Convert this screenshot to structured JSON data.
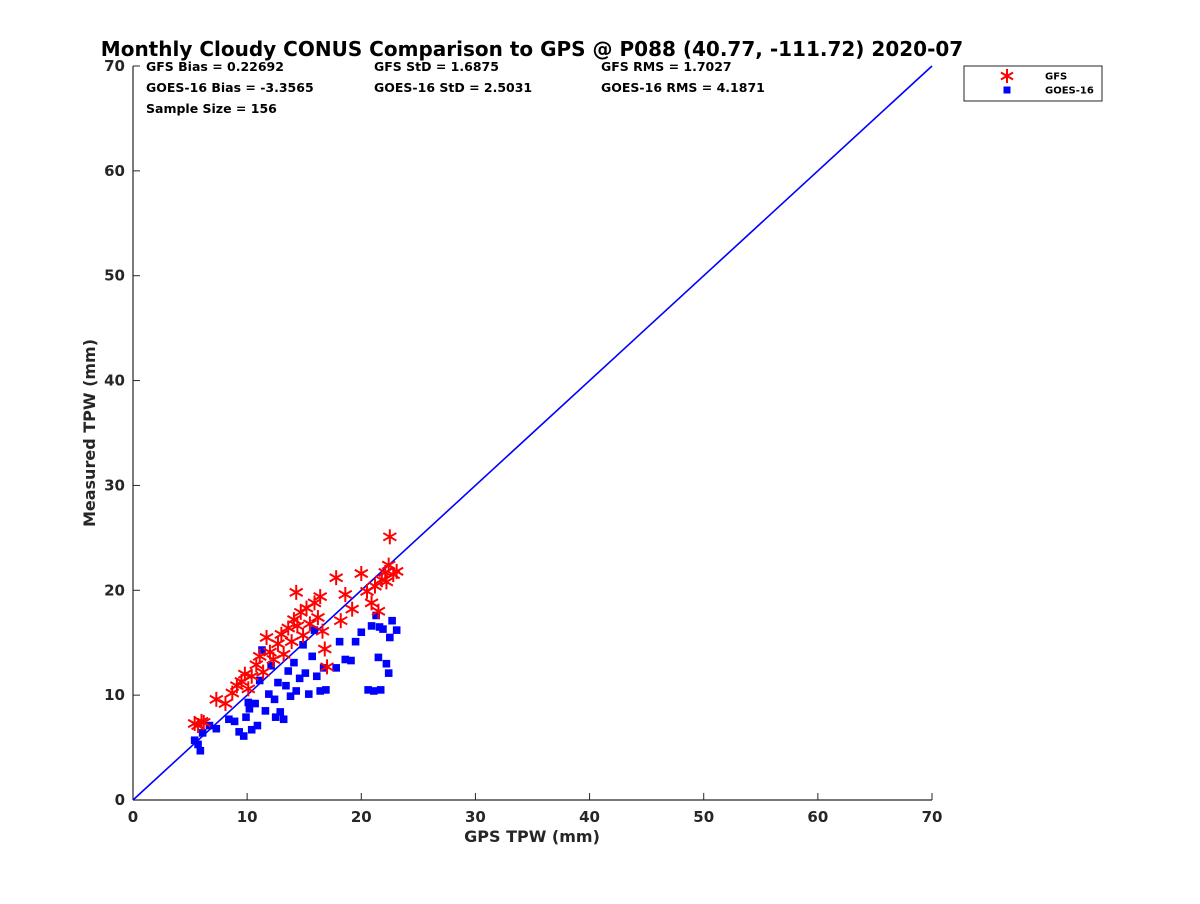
{
  "chart_data": {
    "type": "scatter",
    "title": "Monthly Cloudy CONUS Comparison to GPS @ P088 (40.77, -111.72) 2020-07",
    "xlabel": "GPS TPW (mm)",
    "ylabel": "Measured TPW (mm)",
    "xlim": [
      0,
      70
    ],
    "ylim": [
      0,
      70
    ],
    "xticks": [
      "0",
      "10",
      "20",
      "30",
      "40",
      "50",
      "60",
      "70"
    ],
    "yticks": [
      "0",
      "10",
      "20",
      "30",
      "40",
      "50",
      "60",
      "70"
    ],
    "grid": false,
    "legend_position": "top-right",
    "stats": [
      [
        "GFS Bias = 0.22692",
        "GFS StD = 1.6875",
        "GFS RMS = 1.7027"
      ],
      [
        "GOES-16 Bias = -3.3565",
        "GOES-16 StD = 2.5031",
        "GOES-16 RMS = 4.1871"
      ],
      [
        "Sample Size = 156",
        "",
        ""
      ]
    ],
    "one_to_one_line": {
      "x": [
        0,
        70
      ],
      "y": [
        0,
        70
      ],
      "color": "#0000ff"
    },
    "series": [
      {
        "name": "GFS",
        "marker": "asterisk",
        "color": "#ff0000",
        "points": [
          [
            5.4,
            7.3
          ],
          [
            5.7,
            7.1
          ],
          [
            6.0,
            7.5
          ],
          [
            6.2,
            7.4
          ],
          [
            7.3,
            9.6
          ],
          [
            8.1,
            9.2
          ],
          [
            8.7,
            10.2
          ],
          [
            9.1,
            10.9
          ],
          [
            9.5,
            11.3
          ],
          [
            9.8,
            12.0
          ],
          [
            10.1,
            10.6
          ],
          [
            10.4,
            11.8
          ],
          [
            10.8,
            12.9
          ],
          [
            11.1,
            13.7
          ],
          [
            11.4,
            12.2
          ],
          [
            11.7,
            15.5
          ],
          [
            12.0,
            14.1
          ],
          [
            12.3,
            13.4
          ],
          [
            12.7,
            14.9
          ],
          [
            13.0,
            15.8
          ],
          [
            13.2,
            13.9
          ],
          [
            13.6,
            16.4
          ],
          [
            13.9,
            15.1
          ],
          [
            14.1,
            17.2
          ],
          [
            14.3,
            19.8
          ],
          [
            14.4,
            16.6
          ],
          [
            14.7,
            17.9
          ],
          [
            14.9,
            15.7
          ],
          [
            15.2,
            18.3
          ],
          [
            15.5,
            16.8
          ],
          [
            15.9,
            18.8
          ],
          [
            16.2,
            17.4
          ],
          [
            16.4,
            19.4
          ],
          [
            16.6,
            16.1
          ],
          [
            16.8,
            14.4
          ],
          [
            17.0,
            12.7
          ],
          [
            17.8,
            21.2
          ],
          [
            18.2,
            17.1
          ],
          [
            18.6,
            19.6
          ],
          [
            19.2,
            18.2
          ],
          [
            20.0,
            21.6
          ],
          [
            20.5,
            19.9
          ],
          [
            20.9,
            18.8
          ],
          [
            21.2,
            20.4
          ],
          [
            21.5,
            18.0
          ],
          [
            21.8,
            21.0
          ],
          [
            22.1,
            21.7
          ],
          [
            22.4,
            22.4
          ],
          [
            22.5,
            25.1
          ],
          [
            22.8,
            21.5
          ],
          [
            23.1,
            21.8
          ],
          [
            22.2,
            20.8
          ]
        ]
      },
      {
        "name": "GOES-16",
        "marker": "square",
        "color": "#0000ff",
        "points": [
          [
            5.4,
            5.7
          ],
          [
            5.7,
            5.3
          ],
          [
            5.9,
            4.7
          ],
          [
            6.1,
            6.4
          ],
          [
            6.7,
            7.1
          ],
          [
            7.3,
            6.8
          ],
          [
            8.4,
            7.7
          ],
          [
            8.9,
            7.5
          ],
          [
            9.3,
            6.5
          ],
          [
            9.7,
            6.1
          ],
          [
            9.9,
            7.9
          ],
          [
            10.2,
            8.7
          ],
          [
            10.4,
            6.7
          ],
          [
            10.7,
            9.2
          ],
          [
            10.9,
            7.1
          ],
          [
            11.1,
            11.4
          ],
          [
            11.3,
            14.3
          ],
          [
            11.6,
            8.5
          ],
          [
            11.9,
            10.1
          ],
          [
            12.1,
            12.8
          ],
          [
            12.4,
            9.6
          ],
          [
            12.7,
            11.2
          ],
          [
            12.9,
            8.4
          ],
          [
            13.2,
            7.7
          ],
          [
            13.4,
            10.9
          ],
          [
            13.6,
            12.3
          ],
          [
            13.8,
            9.9
          ],
          [
            14.1,
            13.1
          ],
          [
            14.3,
            10.4
          ],
          [
            14.6,
            11.6
          ],
          [
            14.9,
            14.8
          ],
          [
            15.1,
            12.1
          ],
          [
            15.4,
            10.1
          ],
          [
            15.7,
            13.7
          ],
          [
            15.9,
            16.2
          ],
          [
            16.1,
            11.8
          ],
          [
            16.4,
            10.4
          ],
          [
            16.7,
            12.6
          ],
          [
            16.9,
            10.5
          ],
          [
            17.8,
            12.6
          ],
          [
            18.1,
            15.1
          ],
          [
            18.6,
            13.4
          ],
          [
            19.1,
            13.3
          ],
          [
            19.5,
            15.1
          ],
          [
            20.0,
            16.0
          ],
          [
            20.6,
            10.5
          ],
          [
            20.9,
            16.6
          ],
          [
            21.1,
            10.4
          ],
          [
            21.3,
            17.6
          ],
          [
            21.5,
            13.6
          ],
          [
            21.7,
            10.5
          ],
          [
            21.9,
            16.3
          ],
          [
            22.2,
            13.0
          ],
          [
            22.4,
            12.1
          ],
          [
            22.7,
            17.1
          ],
          [
            23.1,
            16.2
          ],
          [
            22.5,
            15.5
          ],
          [
            21.6,
            16.5
          ],
          [
            12.5,
            7.9
          ],
          [
            10.1,
            9.3
          ]
        ]
      }
    ]
  }
}
